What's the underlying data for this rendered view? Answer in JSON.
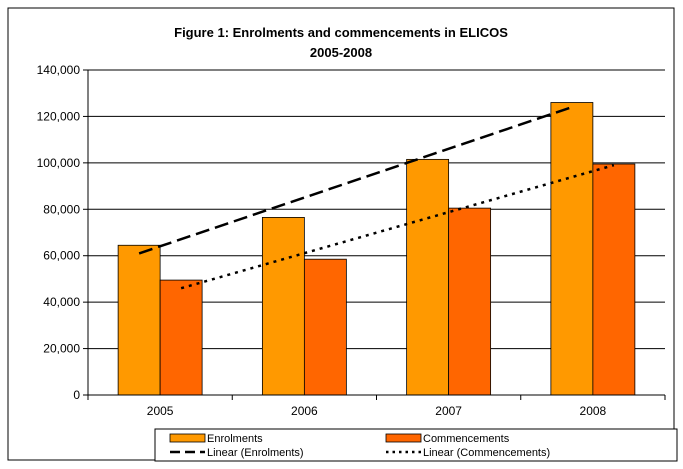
{
  "chart_data": {
    "type": "bar",
    "title_lines": [
      "Figure 1: Enrolments and commencements in ELICOS",
      "2005-2008"
    ],
    "categories": [
      "2005",
      "2006",
      "2007",
      "2008"
    ],
    "series": [
      {
        "name": "Enrolments",
        "values": [
          64500,
          76500,
          101500,
          126000
        ],
        "color": "#FF9900"
      },
      {
        "name": "Commencements",
        "values": [
          49500,
          58500,
          80500,
          99500
        ],
        "color": "#FF6600"
      }
    ],
    "trendlines": [
      {
        "name": "Linear (Enrolments)",
        "of": "Enrolments",
        "start": 61000,
        "end": 124000,
        "style": "dashed",
        "color": "#000000"
      },
      {
        "name": "Linear (Commencements)",
        "of": "Commencements",
        "start": 46000,
        "end": 99000,
        "style": "dotted",
        "color": "#000000"
      }
    ],
    "y_ticks": [
      "0",
      "20,000",
      "40,000",
      "60,000",
      "80,000",
      "100,000",
      "120,000",
      "140,000"
    ],
    "ylim": [
      0,
      140000
    ],
    "grid": true,
    "legend_position": "bottom"
  }
}
